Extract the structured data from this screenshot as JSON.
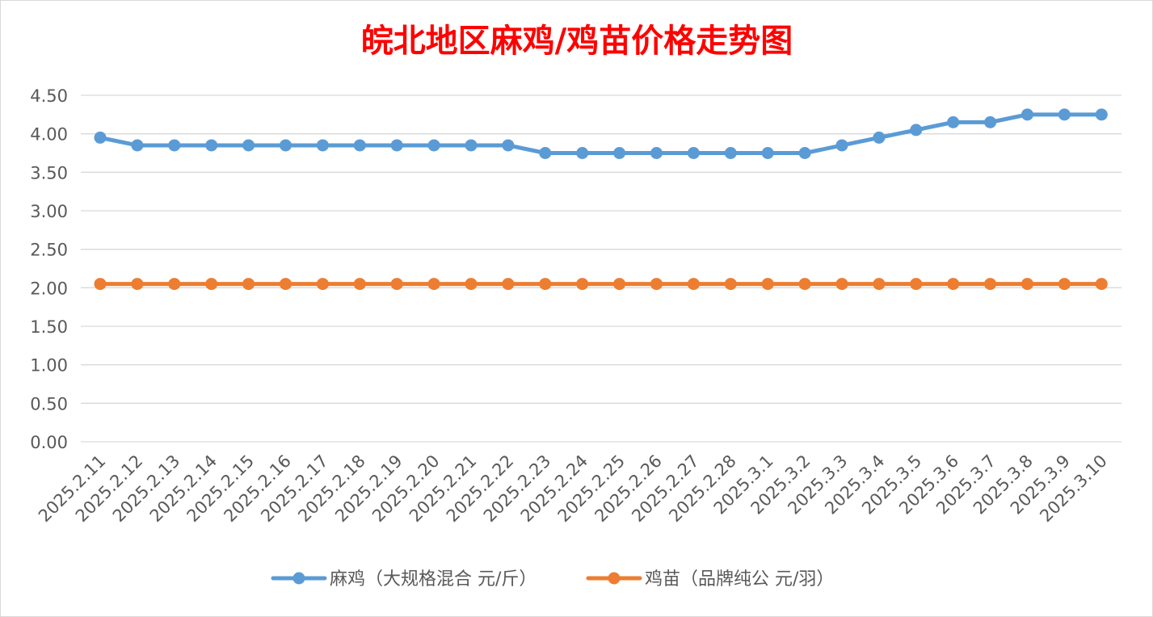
{
  "chart_data": {
    "type": "line",
    "title": "皖北地区麻鸡/鸡苗价格走势图",
    "xlabel": "",
    "ylabel": "",
    "ylim": [
      0,
      4.5
    ],
    "ytick_labels": [
      "0.00",
      "0.50",
      "1.00",
      "1.50",
      "2.00",
      "2.50",
      "3.00",
      "3.50",
      "4.00",
      "4.50"
    ],
    "categories": [
      "2025.2.11",
      "2025.2.12",
      "2025.2.13",
      "2025.2.14",
      "2025.2.15",
      "2025.2.16",
      "2025.2.17",
      "2025.2.18",
      "2025.2.19",
      "2025.2.20",
      "2025.2.21",
      "2025.2.22",
      "2025.2.23",
      "2025.2.24",
      "2025.2.25",
      "2025.2.26",
      "2025.2.27",
      "2025.2.28",
      "2025.3.1",
      "2025.3.2",
      "2025.3.3",
      "2025.3.4",
      "2025.3.5",
      "2025.3.6",
      "2025.3.7",
      "2025.3.8",
      "2025.3.9",
      "2025.3.10"
    ],
    "series": [
      {
        "name": "麻鸡（大规格混合 元/斤）",
        "color": "#5B9BD5",
        "values": [
          3.95,
          3.85,
          3.85,
          3.85,
          3.85,
          3.85,
          3.85,
          3.85,
          3.85,
          3.85,
          3.85,
          3.85,
          3.75,
          3.75,
          3.75,
          3.75,
          3.75,
          3.75,
          3.75,
          3.75,
          3.85,
          3.95,
          4.05,
          4.15,
          4.15,
          4.25,
          4.25,
          4.25
        ]
      },
      {
        "name": "鸡苗（品牌纯公 元/羽）",
        "color": "#ED7D31",
        "values": [
          2.05,
          2.05,
          2.05,
          2.05,
          2.05,
          2.05,
          2.05,
          2.05,
          2.05,
          2.05,
          2.05,
          2.05,
          2.05,
          2.05,
          2.05,
          2.05,
          2.05,
          2.05,
          2.05,
          2.05,
          2.05,
          2.05,
          2.05,
          2.05,
          2.05,
          2.05,
          2.05,
          2.05
        ]
      }
    ],
    "grid": true,
    "legend": "bottom",
    "title_color": "#FF0000"
  }
}
